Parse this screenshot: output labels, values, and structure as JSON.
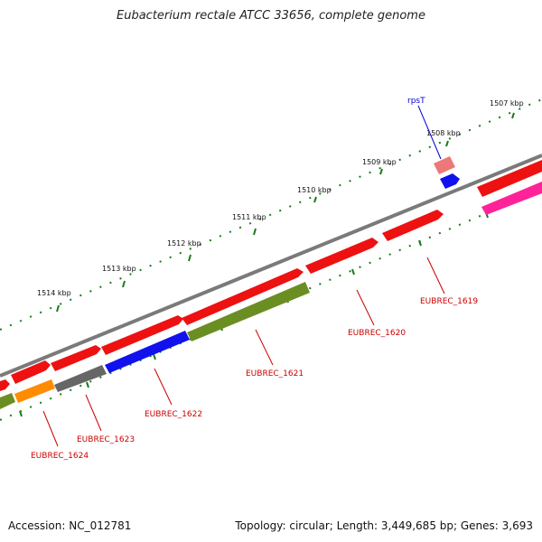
{
  "title": "Eubacterium rectale ATCC 33656, complete genome",
  "footer": {
    "accession": "Accession: NC_012781",
    "summary": "Topology: circular; Length: 3,449,685 bp; Genes: 3,693"
  },
  "kbp_ticks": [
    {
      "label": "1507 kbp"
    },
    {
      "label": "1508 kbp"
    },
    {
      "label": "1509 kbp"
    },
    {
      "label": "1510 kbp"
    },
    {
      "label": "1511 kbp"
    },
    {
      "label": "1512 kbp"
    },
    {
      "label": "1513 kbp"
    },
    {
      "label": "1514 kbp"
    }
  ],
  "gene_labels": [
    {
      "text": "rpsT",
      "color": "#0000cc"
    },
    {
      "text": "EUBREC_1619",
      "color": "#cc0000"
    },
    {
      "text": "EUBREC_1620",
      "color": "#cc0000"
    },
    {
      "text": "EUBREC_1621",
      "color": "#cc0000"
    },
    {
      "text": "EUBREC_1622",
      "color": "#cc0000"
    },
    {
      "text": "EUBREC_1623",
      "color": "#cc0000"
    },
    {
      "text": "EUBREC_1624",
      "color": "#cc0000"
    }
  ],
  "colors": {
    "backbone": "#7a7a7a",
    "tick": "#1a7a1a",
    "red": "#ee1111",
    "pink": "#ee7777",
    "blue": "#1111ee",
    "magenta": "#ff2299",
    "olive": "#6b8e23",
    "gray": "#666666",
    "orange": "#ff8c00"
  }
}
